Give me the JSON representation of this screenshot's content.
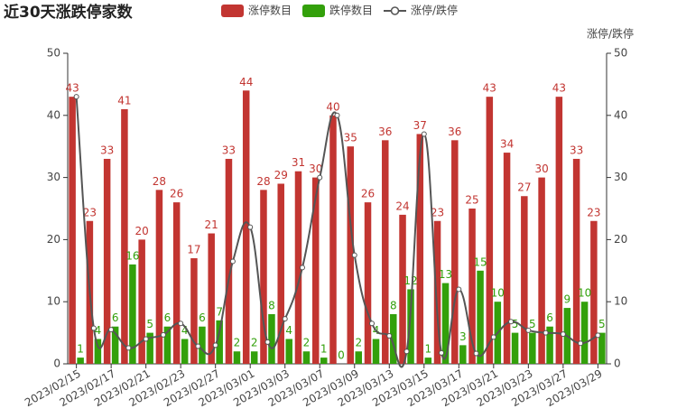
{
  "chart_data": {
    "type": "bar",
    "title": "近30天涨跌停家数",
    "y2label": "涨停/跌停",
    "categories": [
      "2023/02/15",
      "2023/02/16",
      "2023/02/17",
      "2023/02/20",
      "2023/02/21",
      "2023/02/22",
      "2023/02/23",
      "2023/02/24",
      "2023/02/27",
      "2023/02/28",
      "2023/03/01",
      "2023/03/02",
      "2023/03/03",
      "2023/03/06",
      "2023/03/07",
      "2023/03/08",
      "2023/03/09",
      "2023/03/10",
      "2023/03/13",
      "2023/03/14",
      "2023/03/15",
      "2023/03/16",
      "2023/03/17",
      "2023/03/20",
      "2023/03/21",
      "2023/03/22",
      "2023/03/23",
      "2023/03/24",
      "2023/03/27",
      "2023/03/28",
      "2023/03/29"
    ],
    "category_labels_every": 2,
    "series": [
      {
        "name": "涨停数目",
        "type": "bar",
        "color": "#c23531",
        "values": [
          43,
          23,
          33,
          41,
          20,
          28,
          26,
          17,
          21,
          33,
          44,
          28,
          29,
          31,
          30,
          40,
          35,
          26,
          36,
          24,
          37,
          23,
          36,
          25,
          43,
          34,
          27,
          30,
          43,
          33,
          23
        ]
      },
      {
        "name": "跌停数目",
        "type": "bar",
        "color": "#33a00b",
        "values": [
          1,
          4,
          6,
          16,
          5,
          6,
          4,
          6,
          7,
          2,
          2,
          8,
          4,
          2,
          1,
          0,
          2,
          4,
          8,
          12,
          1,
          13,
          3,
          15,
          10,
          5,
          5,
          6,
          9,
          10,
          5
        ]
      },
      {
        "name": "涨停/跌停",
        "type": "line",
        "axis": "y2",
        "color": "#555555",
        "values": [
          43,
          5.75,
          5.5,
          2.56,
          4,
          4.67,
          6.5,
          2.83,
          3,
          16.5,
          22,
          3.5,
          7.25,
          15.5,
          30,
          40,
          17.5,
          6.5,
          4.5,
          2,
          37,
          1.77,
          12,
          1.67,
          4.3,
          6.8,
          5.4,
          5,
          4.78,
          3.3,
          4.6
        ]
      }
    ],
    "ylim": [
      0,
      50
    ],
    "yticks": [
      0,
      10,
      20,
      30,
      40,
      50
    ],
    "y2lim": [
      0,
      50
    ],
    "y2ticks": [
      0,
      10,
      20,
      30,
      40,
      50
    ],
    "grid": false
  }
}
